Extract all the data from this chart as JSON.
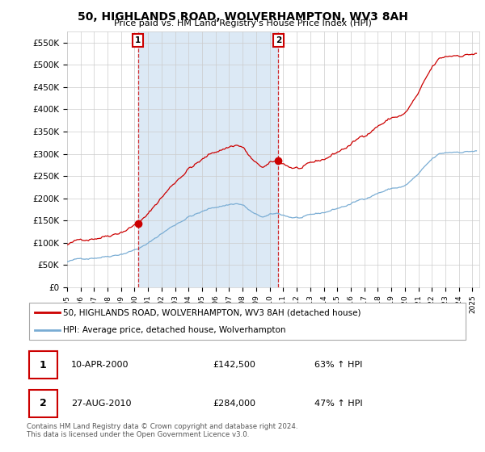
{
  "title": "50, HIGHLANDS ROAD, WOLVERHAMPTON, WV3 8AH",
  "subtitle": "Price paid vs. HM Land Registry's House Price Index (HPI)",
  "ylabel_ticks": [
    "£0",
    "£50K",
    "£100K",
    "£150K",
    "£200K",
    "£250K",
    "£300K",
    "£350K",
    "£400K",
    "£450K",
    "£500K",
    "£550K"
  ],
  "ytick_values": [
    0,
    50000,
    100000,
    150000,
    200000,
    250000,
    300000,
    350000,
    400000,
    450000,
    500000,
    550000
  ],
  "ylim": [
    0,
    575000
  ],
  "xlim_start": 1995.0,
  "xlim_end": 2025.5,
  "sale1_x": 2000.27,
  "sale1_y": 142500,
  "sale2_x": 2010.65,
  "sale2_y": 284000,
  "red_color": "#cc0000",
  "blue_color": "#7aadd4",
  "shade_color": "#dce9f5",
  "background_color": "#ffffff",
  "grid_color": "#cccccc",
  "legend_label_red": "50, HIGHLANDS ROAD, WOLVERHAMPTON, WV3 8AH (detached house)",
  "legend_label_blue": "HPI: Average price, detached house, Wolverhampton",
  "annotation1_label": "1",
  "annotation2_label": "2",
  "table_row1": [
    "1",
    "10-APR-2000",
    "£142,500",
    "63% ↑ HPI"
  ],
  "table_row2": [
    "2",
    "27-AUG-2010",
    "£284,000",
    "47% ↑ HPI"
  ],
  "footer": "Contains HM Land Registry data © Crown copyright and database right 2024.\nThis data is licensed under the Open Government Licence v3.0.",
  "xtick_years": [
    1995,
    1996,
    1997,
    1998,
    1999,
    2000,
    2001,
    2002,
    2003,
    2004,
    2005,
    2006,
    2007,
    2008,
    2009,
    2010,
    2011,
    2012,
    2013,
    2014,
    2015,
    2016,
    2017,
    2018,
    2019,
    2020,
    2021,
    2022,
    2023,
    2024,
    2025
  ]
}
